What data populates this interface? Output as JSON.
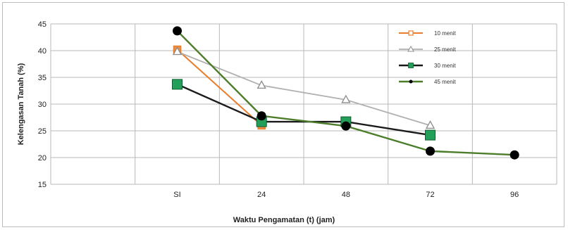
{
  "chart_data": {
    "type": "line",
    "xlabel": "Waktu Pengamatan (t) (jam)",
    "ylabel": "Kelengasan Tanah (%)",
    "categories": [
      "SI",
      "24",
      "48",
      "72",
      "96"
    ],
    "ylim": [
      15,
      45
    ],
    "yticks": [
      15,
      20,
      25,
      30,
      35,
      40,
      45
    ],
    "grid": true,
    "legend_position": "top-right",
    "series": [
      {
        "name": "10 menit",
        "values": [
          40.2,
          26.0,
          null,
          null,
          null
        ],
        "color": "#e87d2c",
        "marker": "square-open",
        "marker_fill": "#e87d2c"
      },
      {
        "name": "25 menit",
        "values": [
          39.8,
          33.5,
          30.8,
          26.0,
          null
        ],
        "color": "#b0b0b0",
        "marker": "triangle-open",
        "marker_fill": "none"
      },
      {
        "name": "30 menit",
        "values": [
          33.7,
          26.7,
          26.7,
          24.2,
          null
        ],
        "color": "#1a1a1a",
        "marker": "square",
        "marker_fill": "#22a05a"
      },
      {
        "name": "45 menit",
        "values": [
          43.7,
          27.8,
          25.9,
          21.2,
          20.5
        ],
        "color": "#4c7d2a",
        "marker": "circle",
        "marker_fill": "#000000"
      }
    ]
  }
}
